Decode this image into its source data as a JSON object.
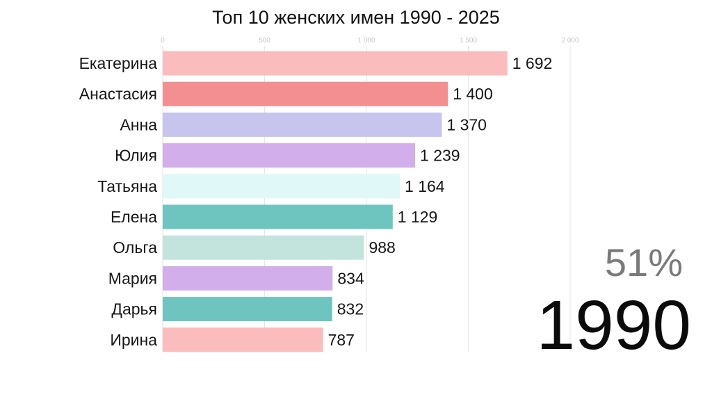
{
  "chart_data": {
    "type": "bar",
    "orientation": "horizontal",
    "title": "Топ 10 женских имен 1990 - 2025",
    "categories": [
      "Екатерина",
      "Анастасия",
      "Анна",
      "Юлия",
      "Татьяна",
      "Елена",
      "Ольга",
      "Мария",
      "Дарья",
      "Ирина"
    ],
    "values": [
      1692,
      1400,
      1370,
      1239,
      1164,
      1129,
      988,
      834,
      832,
      787
    ],
    "value_labels": [
      "1 692",
      "1 400",
      "1 370",
      "1 239",
      "1 164",
      "1 129",
      "988",
      "834",
      "832",
      "787"
    ],
    "bar_colors": [
      "#fbbcbe",
      "#f48f91",
      "#c7c4ee",
      "#d2aeea",
      "#e0f8f7",
      "#6ec5c0",
      "#c2e4dc",
      "#d2aeea",
      "#6ec5c0",
      "#fbbcbe"
    ],
    "xlim": [
      0,
      2000
    ],
    "xticks": [
      0,
      500,
      1000,
      1500,
      2000
    ],
    "xtick_labels": [
      "0",
      "500",
      "1 000",
      "1 500",
      "2 000"
    ],
    "grid": true,
    "xaxis_position": "top",
    "progress_label": "51%",
    "progress": 0.51,
    "year_label": "1990"
  }
}
